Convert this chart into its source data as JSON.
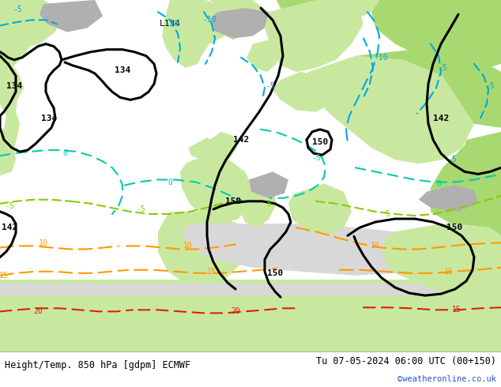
{
  "title_left": "Height/Temp. 850 hPa [gdpm] ECMWF",
  "title_right": "Tu 07-05-2024 06:00 UTC (00+150)",
  "credit": "©weatheronline.co.uk",
  "fig_width": 6.34,
  "fig_height": 4.9,
  "dpi": 100,
  "map_bg_sea": "#d8d8d8",
  "map_bg_land_light": "#c8e8a0",
  "map_bg_land_medium": "#a8d870",
  "map_bg_land_green": "#b0d888",
  "map_bg_mountain": "#b0b0b0",
  "contour_black_color": "#000000",
  "contour_blue_color": "#00aadd",
  "contour_cyan_color": "#00ccaa",
  "contour_lime_color": "#88cc00",
  "contour_orange_color": "#ff9900",
  "contour_red_color": "#dd2200",
  "bottom_bar_color": "#ffffff",
  "bottom_text_color": "#000000",
  "credit_color": "#2255cc",
  "bottom_bar_height": 0.092,
  "font_family": "DejaVu Sans Mono",
  "title_fontsize": 8.5,
  "credit_fontsize": 7.5,
  "label_fontsize": 8
}
